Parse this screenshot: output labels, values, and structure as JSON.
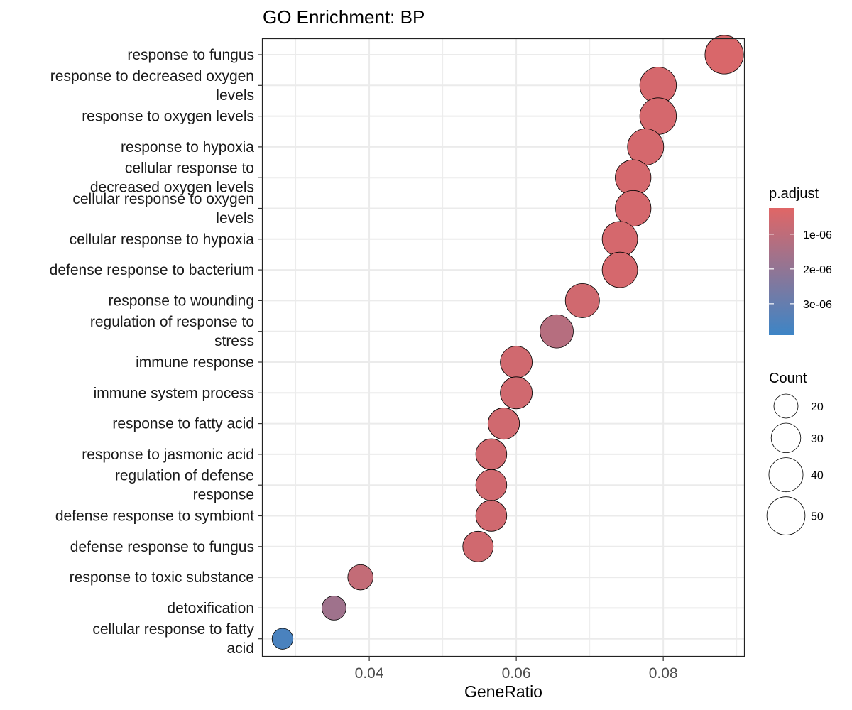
{
  "chart_data": {
    "type": "scatter",
    "title": "GO Enrichment: BP",
    "xlabel": "GeneRatio",
    "ylabel": "",
    "xlim": [
      0.0255,
      0.091
    ],
    "x_ticks": [
      0.04,
      0.06,
      0.08
    ],
    "x_tick_labels": [
      "0.04",
      "0.06",
      "0.08"
    ],
    "grid": true,
    "legend_position": "right",
    "terms": [
      {
        "label": "response to fungus",
        "gene_ratio": 0.0883,
        "count": 51,
        "p_adjust": 4e-07
      },
      {
        "label": "response to decreased oxygen levels",
        "gene_ratio": 0.0793,
        "count": 46,
        "p_adjust": 5e-07
      },
      {
        "label": "response to oxygen levels",
        "gene_ratio": 0.0793,
        "count": 46,
        "p_adjust": 5e-07
      },
      {
        "label": "response to hypoxia",
        "gene_ratio": 0.0776,
        "count": 45,
        "p_adjust": 5e-07
      },
      {
        "label": "cellular response to decreased oxygen levels",
        "gene_ratio": 0.0759,
        "count": 44,
        "p_adjust": 5e-07
      },
      {
        "label": "cellular response to oxygen levels",
        "gene_ratio": 0.0759,
        "count": 44,
        "p_adjust": 5e-07
      },
      {
        "label": "cellular response to hypoxia",
        "gene_ratio": 0.0741,
        "count": 43,
        "p_adjust": 5e-07
      },
      {
        "label": "defense response to bacterium",
        "gene_ratio": 0.0741,
        "count": 43,
        "p_adjust": 5e-07
      },
      {
        "label": "response to wounding",
        "gene_ratio": 0.069,
        "count": 40,
        "p_adjust": 6e-07
      },
      {
        "label": "regulation of response to stress",
        "gene_ratio": 0.0655,
        "count": 38,
        "p_adjust": 1.2e-06
      },
      {
        "label": "immune response",
        "gene_ratio": 0.06,
        "count": 35,
        "p_adjust": 6e-07
      },
      {
        "label": "immune system process",
        "gene_ratio": 0.06,
        "count": 35,
        "p_adjust": 6e-07
      },
      {
        "label": "response to fatty acid",
        "gene_ratio": 0.0583,
        "count": 34,
        "p_adjust": 6e-07
      },
      {
        "label": "response to jasmonic acid",
        "gene_ratio": 0.0566,
        "count": 33,
        "p_adjust": 6e-07
      },
      {
        "label": "regulation of defense response",
        "gene_ratio": 0.0566,
        "count": 33,
        "p_adjust": 6e-07
      },
      {
        "label": "defense response to symbiont",
        "gene_ratio": 0.0566,
        "count": 33,
        "p_adjust": 6e-07
      },
      {
        "label": "defense response to fungus",
        "gene_ratio": 0.0548,
        "count": 32,
        "p_adjust": 6e-07
      },
      {
        "label": "response to toxic substance",
        "gene_ratio": 0.0388,
        "count": 22,
        "p_adjust": 9e-07
      },
      {
        "label": "detoxification",
        "gene_ratio": 0.0352,
        "count": 20,
        "p_adjust": 1.7e-06
      },
      {
        "label": "cellular response to fatty acid",
        "gene_ratio": 0.0282,
        "count": 15,
        "p_adjust": 3.6e-06
      }
    ],
    "color_legend": {
      "title": "p.adjust",
      "low_color": "#e06666",
      "high_color": "#3d85c6",
      "min": 2.5e-07,
      "max": 3.9e-06,
      "ticks": [
        1e-06,
        2e-06,
        3e-06
      ],
      "tick_labels": [
        "1e-06",
        "2e-06",
        "3e-06"
      ]
    },
    "size_legend": {
      "title": "Count",
      "values": [
        20,
        30,
        40,
        50
      ],
      "labels": [
        "20",
        "30",
        "40",
        "50"
      ]
    }
  }
}
